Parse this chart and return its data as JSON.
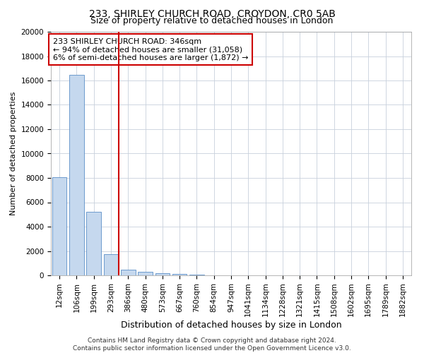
{
  "title": "233, SHIRLEY CHURCH ROAD, CROYDON, CR0 5AB",
  "subtitle": "Size of property relative to detached houses in London",
  "xlabel": "Distribution of detached houses by size in London",
  "ylabel": "Number of detached properties",
  "categories": [
    "12sqm",
    "106sqm",
    "199sqm",
    "293sqm",
    "386sqm",
    "480sqm",
    "573sqm",
    "667sqm",
    "760sqm",
    "854sqm",
    "947sqm",
    "1041sqm",
    "1134sqm",
    "1228sqm",
    "1321sqm",
    "1415sqm",
    "1508sqm",
    "1602sqm",
    "1695sqm",
    "1789sqm",
    "1882sqm"
  ],
  "values": [
    8050,
    16450,
    5200,
    1750,
    450,
    280,
    180,
    120,
    80,
    0,
    0,
    0,
    0,
    0,
    0,
    0,
    0,
    0,
    0,
    0,
    0
  ],
  "bar_color": "#c5d8ee",
  "bar_edge_color": "#5b8ec7",
  "vline_x_pos": 3.47,
  "vline_color": "#cc0000",
  "annotation_text": "233 SHIRLEY CHURCH ROAD: 346sqm\n← 94% of detached houses are smaller (31,058)\n6% of semi-detached houses are larger (1,872) →",
  "annotation_box_color": "#ffffff",
  "annotation_box_edge": "#cc0000",
  "ylim": [
    0,
    20000
  ],
  "yticks": [
    0,
    2000,
    4000,
    6000,
    8000,
    10000,
    12000,
    14000,
    16000,
    18000,
    20000
  ],
  "footer_line1": "Contains HM Land Registry data © Crown copyright and database right 2024.",
  "footer_line2": "Contains public sector information licensed under the Open Government Licence v3.0.",
  "background_color": "#ffffff",
  "grid_color": "#c8d0dc",
  "title_fontsize": 10,
  "subtitle_fontsize": 9,
  "ylabel_fontsize": 8,
  "xlabel_fontsize": 9,
  "tick_fontsize": 7.5,
  "annotation_fontsize": 8,
  "footer_fontsize": 6.5
}
